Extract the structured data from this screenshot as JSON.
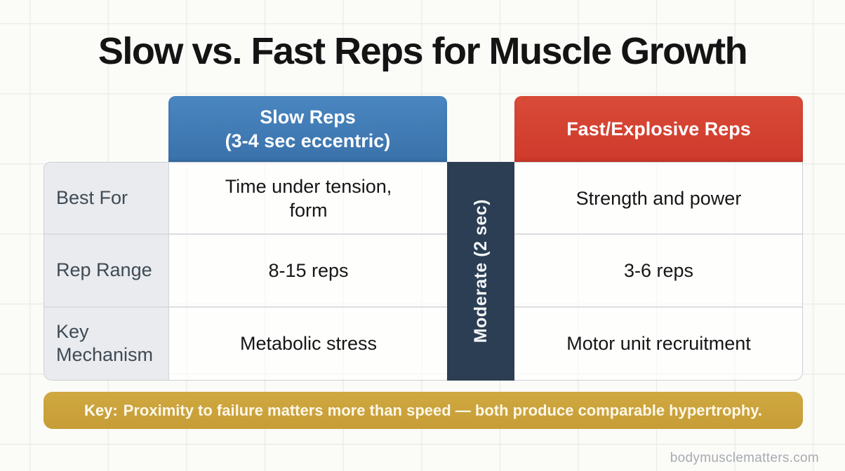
{
  "title": "Slow vs. Fast Reps for Muscle Growth",
  "colors": {
    "blue": "#3a72ab",
    "blue-light": "#4a86c0",
    "red": "#cf392b",
    "red-light": "#d94b38",
    "navy": "#2b3e53",
    "gold": "#c69d36",
    "gold-light": "#d0a840",
    "label-bg": "#e9ebee"
  },
  "table": {
    "columns": [
      {
        "id": "slow",
        "header_line1": "Slow Reps",
        "header_line2": "(3-4 sec eccentric)",
        "color": "#3a72ab"
      },
      {
        "id": "moderate",
        "header": "Moderate (2 sec)",
        "color": "#2b3e53"
      },
      {
        "id": "fast",
        "header": "Fast/Explosive Reps",
        "color": "#cf392b"
      }
    ],
    "rows": [
      {
        "label": "Best For",
        "slow": "Time under tension,\nform",
        "fast": "Strength and power"
      },
      {
        "label": "Rep Range",
        "slow": "8-15 reps",
        "fast": "3-6 reps"
      },
      {
        "label": "Key Mechanism",
        "slow": "Metabolic stress",
        "fast": "Motor unit recruitment"
      }
    ]
  },
  "key_banner": {
    "prefix": "Key:",
    "text": "Proximity to failure matters more than speed — both produce comparable hypertrophy."
  },
  "watermark": "bodymusclematters.com",
  "chart_data": {
    "type": "table",
    "title": "Slow vs. Fast Reps for Muscle Growth",
    "column_headers": [
      "",
      "Slow Reps (3-4 sec eccentric)",
      "Moderate (2 sec)",
      "Fast/Explosive Reps"
    ],
    "rows": [
      [
        "Best For",
        "Time under tension, form",
        "",
        "Strength and power"
      ],
      [
        "Rep Range",
        "8-15 reps",
        "",
        "3-6 reps"
      ],
      [
        "Key Mechanism",
        "Metabolic stress",
        "",
        "Motor unit recruitment"
      ]
    ],
    "footnote": "Key: Proximity to failure matters more than speed — both produce comparable hypertrophy."
  }
}
